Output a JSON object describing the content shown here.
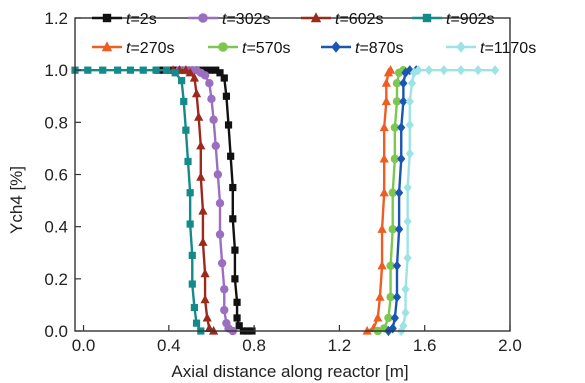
{
  "chart_data": {
    "type": "line",
    "title": "",
    "xlabel": "Axial distance along reactor [m]",
    "ylabel": "Ych4 [%]",
    "xlim": [
      -0.04,
      2.0
    ],
    "ylim": [
      0.0,
      1.2
    ],
    "xticks": [
      "0.0",
      "0.4",
      "0.8",
      "1.2",
      "1.6",
      "2.0"
    ],
    "yticks": [
      "0.0",
      "0.2",
      "0.4",
      "0.6",
      "0.8",
      "1.0",
      "1.2"
    ],
    "grid": false,
    "legend_placement": "top",
    "series": [
      {
        "name": "t=2s",
        "label_var": "t",
        "label_rest": "=2s",
        "color": "#111111",
        "marker": "square",
        "x": [
          0.35,
          0.38,
          0.41,
          0.44,
          0.47,
          0.5,
          0.53,
          0.56,
          0.59,
          0.62,
          0.64,
          0.66,
          0.67,
          0.68,
          0.69,
          0.7,
          0.7,
          0.71,
          0.71,
          0.72,
          0.72,
          0.73,
          0.75,
          0.77,
          0.79
        ],
        "y": [
          1.0,
          1.0,
          1.0,
          1.0,
          1.0,
          1.0,
          1.0,
          1.0,
          1.0,
          1.0,
          0.99,
          0.97,
          0.9,
          0.79,
          0.67,
          0.55,
          0.43,
          0.31,
          0.2,
          0.11,
          0.05,
          0.02,
          0.0,
          0.0,
          0.0
        ]
      },
      {
        "name": "t=302s",
        "label_var": "t",
        "label_rest": "=302s",
        "color": "#9b6fc0",
        "marker": "circle",
        "x": [
          0.45,
          0.48,
          0.51,
          0.53,
          0.55,
          0.57,
          0.59,
          0.6,
          0.61,
          0.62,
          0.63,
          0.64,
          0.64,
          0.65,
          0.66,
          0.66,
          0.67,
          0.68,
          0.7
        ],
        "y": [
          1.0,
          1.0,
          1.0,
          1.0,
          0.99,
          0.98,
          0.95,
          0.89,
          0.81,
          0.71,
          0.6,
          0.49,
          0.37,
          0.26,
          0.16,
          0.08,
          0.03,
          0.01,
          0.0
        ]
      },
      {
        "name": "t=602s",
        "label_var": "t",
        "label_rest": "=602s",
        "color": "#9b2a1c",
        "marker": "triangle",
        "x": [
          0.42,
          0.45,
          0.48,
          0.5,
          0.52,
          0.53,
          0.54,
          0.55,
          0.55,
          0.56,
          0.56,
          0.57,
          0.57,
          0.58,
          0.59,
          0.61
        ],
        "y": [
          1.0,
          1.0,
          1.0,
          0.99,
          0.97,
          0.91,
          0.82,
          0.71,
          0.59,
          0.46,
          0.34,
          0.22,
          0.12,
          0.05,
          0.01,
          0.0
        ]
      },
      {
        "name": "t=902s",
        "label_var": "t",
        "label_rest": "=902s",
        "color": "#148a8a",
        "marker": "square",
        "x": [
          -0.04,
          0.02,
          0.09,
          0.16,
          0.22,
          0.28,
          0.34,
          0.39,
          0.43,
          0.46,
          0.47,
          0.48,
          0.49,
          0.5,
          0.5,
          0.51,
          0.51,
          0.52,
          0.53,
          0.55
        ],
        "y": [
          1.0,
          1.0,
          1.0,
          1.0,
          1.0,
          1.0,
          1.0,
          1.0,
          0.99,
          0.96,
          0.88,
          0.77,
          0.65,
          0.53,
          0.41,
          0.29,
          0.18,
          0.09,
          0.03,
          0.0
        ]
      },
      {
        "name": "t=270s",
        "label_var": "t",
        "label_rest": "=270s",
        "color": "#f05d23",
        "marker": "triangle",
        "x": [
          1.33,
          1.36,
          1.38,
          1.39,
          1.4,
          1.4,
          1.41,
          1.41,
          1.41,
          1.42,
          1.42,
          1.43,
          1.44
        ],
        "y": [
          0.0,
          0.01,
          0.05,
          0.13,
          0.25,
          0.39,
          0.53,
          0.66,
          0.78,
          0.88,
          0.95,
          0.99,
          1.0
        ]
      },
      {
        "name": "t=570s",
        "label_var": "t",
        "label_rest": "=570s",
        "color": "#7cc750",
        "marker": "circle",
        "x": [
          1.38,
          1.41,
          1.43,
          1.44,
          1.44,
          1.45,
          1.45,
          1.46,
          1.46,
          1.47,
          1.47,
          1.48,
          1.5
        ],
        "y": [
          0.0,
          0.01,
          0.05,
          0.13,
          0.25,
          0.39,
          0.53,
          0.66,
          0.78,
          0.88,
          0.95,
          0.99,
          1.0
        ]
      },
      {
        "name": "t=870s",
        "label_var": "t",
        "label_rest": "=870s",
        "color": "#1a56b4",
        "marker": "diamond",
        "x": [
          1.43,
          1.45,
          1.46,
          1.47,
          1.47,
          1.48,
          1.48,
          1.49,
          1.49,
          1.5,
          1.5,
          1.51,
          1.53,
          1.56
        ],
        "y": [
          0.0,
          0.01,
          0.05,
          0.13,
          0.25,
          0.39,
          0.53,
          0.66,
          0.78,
          0.88,
          0.95,
          0.99,
          1.0,
          1.0
        ]
      },
      {
        "name": "t=1170s",
        "label_var": "t",
        "label_rest": "=1170s",
        "color": "#9ee3e3",
        "marker": "diamond",
        "x": [
          1.49,
          1.5,
          1.51,
          1.51,
          1.52,
          1.52,
          1.52,
          1.53,
          1.53,
          1.53,
          1.54,
          1.55,
          1.57,
          1.62,
          1.69,
          1.77,
          1.85,
          1.93
        ],
        "y": [
          0.0,
          0.02,
          0.07,
          0.16,
          0.28,
          0.42,
          0.55,
          0.68,
          0.79,
          0.88,
          0.95,
          0.99,
          1.0,
          1.0,
          1.0,
          1.0,
          1.0,
          1.0
        ]
      }
    ]
  }
}
